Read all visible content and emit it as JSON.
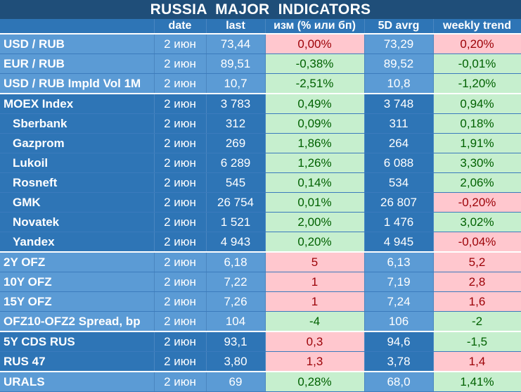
{
  "title": "RUSSIA   MAJOR   INDICATORS",
  "headers": {
    "name": "",
    "date": "date",
    "last": "last",
    "change": "изм (% или бп)",
    "avg": "5D avrg",
    "trend": "weekly trend"
  },
  "colors": {
    "title_bg": "#1f4e79",
    "dark_row": "#2e75b6",
    "light_row": "#5b9bd5",
    "positive_bg": "#c6efce",
    "positive_text": "#006100",
    "negative_bg": "#ffc7ce",
    "negative_text": "#9c0006"
  },
  "groups": [
    {
      "rows": [
        {
          "name": "USD / RUB",
          "date": "2 июн",
          "last": "73,44",
          "change": "0,00%",
          "change_sign": "neg",
          "avg": "73,29",
          "trend": "0,20%",
          "trend_sign": "neg"
        },
        {
          "name": "EUR / RUB",
          "date": "2 июн",
          "last": "89,51",
          "change": "-0,38%",
          "change_sign": "pos",
          "avg": "89,52",
          "trend": "-0,01%",
          "trend_sign": "pos"
        },
        {
          "name": "USD / RUB Impld Vol 1M",
          "date": "2 июн",
          "last": "10,7",
          "change": "-2,51%",
          "change_sign": "pos",
          "avg": "10,8",
          "trend": "-1,20%",
          "trend_sign": "pos"
        }
      ]
    },
    {
      "rows": [
        {
          "name": "MOEX Index",
          "date": "2 июн",
          "last": "3 783",
          "change": "0,49%",
          "change_sign": "pos",
          "avg": "3 748",
          "trend": "0,94%",
          "trend_sign": "pos",
          "sub": false
        },
        {
          "name": "Sberbank",
          "date": "2 июн",
          "last": "312",
          "change": "0,09%",
          "change_sign": "pos",
          "avg": "311",
          "trend": "0,18%",
          "trend_sign": "pos",
          "sub": true
        },
        {
          "name": "Gazprom",
          "date": "2 июн",
          "last": "269",
          "change": "1,86%",
          "change_sign": "pos",
          "avg": "264",
          "trend": "1,91%",
          "trend_sign": "pos",
          "sub": true
        },
        {
          "name": "Lukoil",
          "date": "2 июн",
          "last": "6 289",
          "change": "1,26%",
          "change_sign": "pos",
          "avg": "6 088",
          "trend": "3,30%",
          "trend_sign": "pos",
          "sub": true
        },
        {
          "name": "Rosneft",
          "date": "2 июн",
          "last": "545",
          "change": "0,14%",
          "change_sign": "pos",
          "avg": "534",
          "trend": "2,06%",
          "trend_sign": "pos",
          "sub": true
        },
        {
          "name": "GMK",
          "date": "2 июн",
          "last": "26 754",
          "change": "0,01%",
          "change_sign": "pos",
          "avg": "26 807",
          "trend": "-0,20%",
          "trend_sign": "neg",
          "sub": true
        },
        {
          "name": "Novatek",
          "date": "2 июн",
          "last": "1 521",
          "change": "2,00%",
          "change_sign": "pos",
          "avg": "1 476",
          "trend": "3,02%",
          "trend_sign": "pos",
          "sub": true
        },
        {
          "name": "Yandex",
          "date": "2 июн",
          "last": "4 943",
          "change": "0,20%",
          "change_sign": "pos",
          "avg": "4 945",
          "trend": "-0,04%",
          "trend_sign": "neg",
          "sub": true
        }
      ]
    },
    {
      "rows": [
        {
          "name": "2Y OFZ",
          "date": "2 июн",
          "last": "6,18",
          "change": "5",
          "change_sign": "neg",
          "avg": "6,13",
          "trend": "5,2",
          "trend_sign": "neg"
        },
        {
          "name": "10Y OFZ",
          "date": "2 июн",
          "last": "7,22",
          "change": "1",
          "change_sign": "neg",
          "avg": "7,19",
          "trend": "2,8",
          "trend_sign": "neg"
        },
        {
          "name": "15Y OFZ",
          "date": "2 июн",
          "last": "7,26",
          "change": "1",
          "change_sign": "neg",
          "avg": "7,24",
          "trend": "1,6",
          "trend_sign": "neg"
        },
        {
          "name": "OFZ10-OFZ2 Spread, bp",
          "date": "2 июн",
          "last": "104",
          "change": "-4",
          "change_sign": "pos",
          "avg": "106",
          "trend": "-2",
          "trend_sign": "pos"
        }
      ]
    },
    {
      "rows": [
        {
          "name": "5Y CDS RUS",
          "date": "2 июн",
          "last": "93,1",
          "change": "0,3",
          "change_sign": "neg",
          "avg": "94,6",
          "trend": "-1,5",
          "trend_sign": "pos"
        },
        {
          "name": "RUS 47",
          "date": "2 июн",
          "last": "3,80",
          "change": "1,3",
          "change_sign": "neg",
          "avg": "3,78",
          "trend": "1,4",
          "trend_sign": "neg"
        }
      ]
    },
    {
      "rows": [
        {
          "name": "URALS",
          "date": "2 июн",
          "last": "69",
          "change": "0,28%",
          "change_sign": "pos",
          "avg": "68,0",
          "trend": "1,41%",
          "trend_sign": "pos"
        }
      ]
    }
  ]
}
